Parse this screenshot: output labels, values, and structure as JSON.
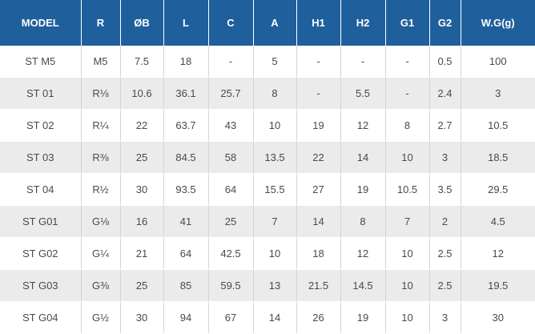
{
  "table": {
    "headers": [
      "MODEL",
      "R",
      "ØB",
      "L",
      "C",
      "A",
      "H1",
      "H2",
      "G1",
      "G2",
      "W.G(g)"
    ],
    "rows": [
      [
        "ST M5",
        "M5",
        "7.5",
        "18",
        "-",
        "5",
        "-",
        "-",
        "-",
        "0.5",
        "100"
      ],
      [
        "ST 01",
        "R⅛",
        "10.6",
        "36.1",
        "25.7",
        "8",
        "-",
        "5.5",
        "-",
        "2.4",
        "3"
      ],
      [
        "ST 02",
        "R¼",
        "22",
        "63.7",
        "43",
        "10",
        "19",
        "12",
        "8",
        "2.7",
        "10.5"
      ],
      [
        "ST 03",
        "R⅜",
        "25",
        "84.5",
        "58",
        "13.5",
        "22",
        "14",
        "10",
        "3",
        "18.5"
      ],
      [
        "ST 04",
        "R½",
        "30",
        "93.5",
        "64",
        "15.5",
        "27",
        "19",
        "10.5",
        "3.5",
        "29.5"
      ],
      [
        "ST G01",
        "G⅛",
        "16",
        "41",
        "25",
        "7",
        "14",
        "8",
        "7",
        "2",
        "4.5"
      ],
      [
        "ST G02",
        "G¼",
        "21",
        "64",
        "42.5",
        "10",
        "18",
        "12",
        "10",
        "2.5",
        "12"
      ],
      [
        "ST G03",
        "G⅜",
        "25",
        "85",
        "59.5",
        "13",
        "21.5",
        "14.5",
        "10",
        "2.5",
        "19.5"
      ],
      [
        "ST G04",
        "G½",
        "30",
        "94",
        "67",
        "14",
        "26",
        "19",
        "10",
        "3",
        "30"
      ]
    ]
  },
  "colors": {
    "header_bg": "#1f5f9c",
    "header_text": "#ffffff",
    "row_alt_bg": "#ebebeb",
    "body_text": "#4a4a4a"
  }
}
